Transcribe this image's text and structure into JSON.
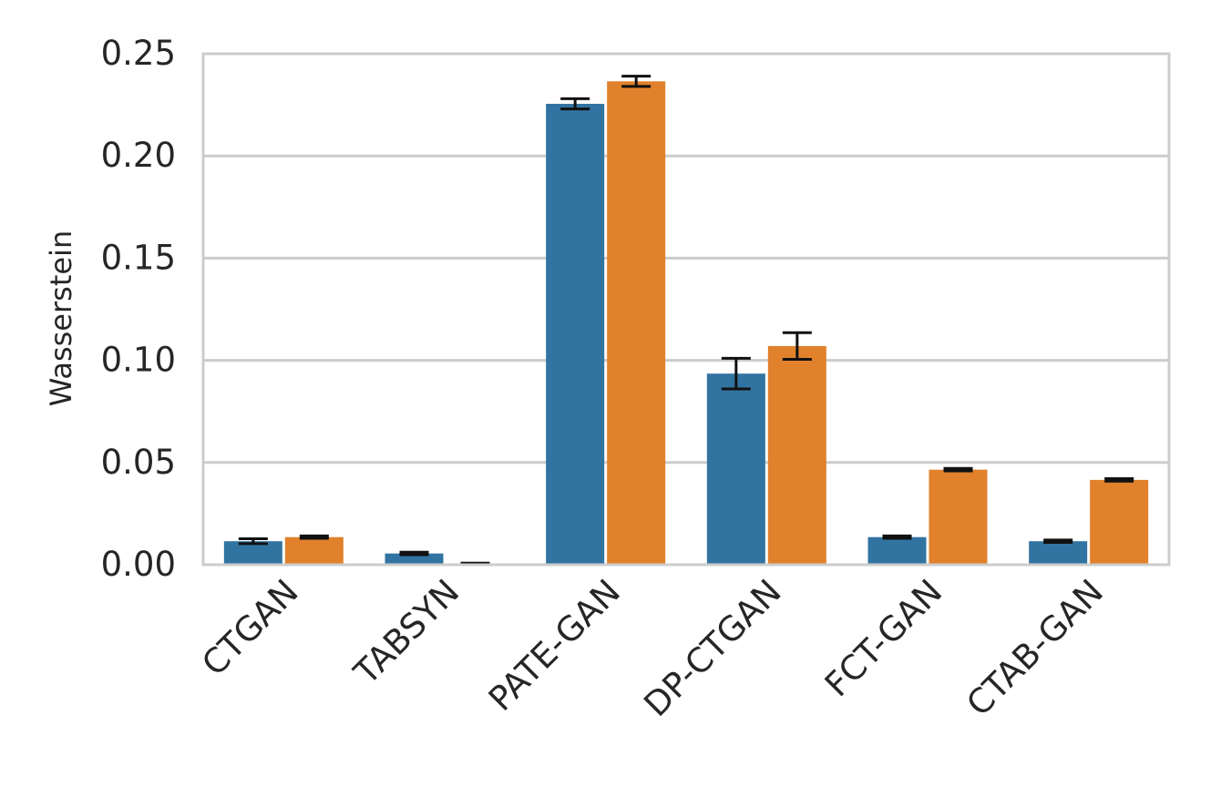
{
  "chart_data": {
    "type": "bar",
    "title": "",
    "xlabel": "",
    "ylabel": "Wasserstein",
    "ylim": [
      0,
      0.25
    ],
    "yticks": [
      "0.00",
      "0.05",
      "0.10",
      "0.15",
      "0.20",
      "0.25"
    ],
    "categories": [
      "CTGAN",
      "TABSYN",
      "PATE-GAN",
      "DP-CTGAN",
      "FCT-GAN",
      "CTAB-GAN"
    ],
    "series": [
      {
        "color": "#3274a1",
        "values": [
          0.0115,
          0.0055,
          0.2255,
          0.0935,
          0.0135,
          0.0115
        ],
        "error": [
          0.0012,
          0.0006,
          0.0025,
          0.0075,
          0.0006,
          0.0006
        ]
      },
      {
        "color": "#e1812c",
        "values": [
          0.0135,
          0.0005,
          0.2365,
          0.107,
          0.0465,
          0.0415
        ],
        "error": [
          0.0006,
          0.0003,
          0.0025,
          0.0065,
          0.0006,
          0.0006
        ]
      }
    ],
    "grid": true,
    "legend": "none"
  }
}
